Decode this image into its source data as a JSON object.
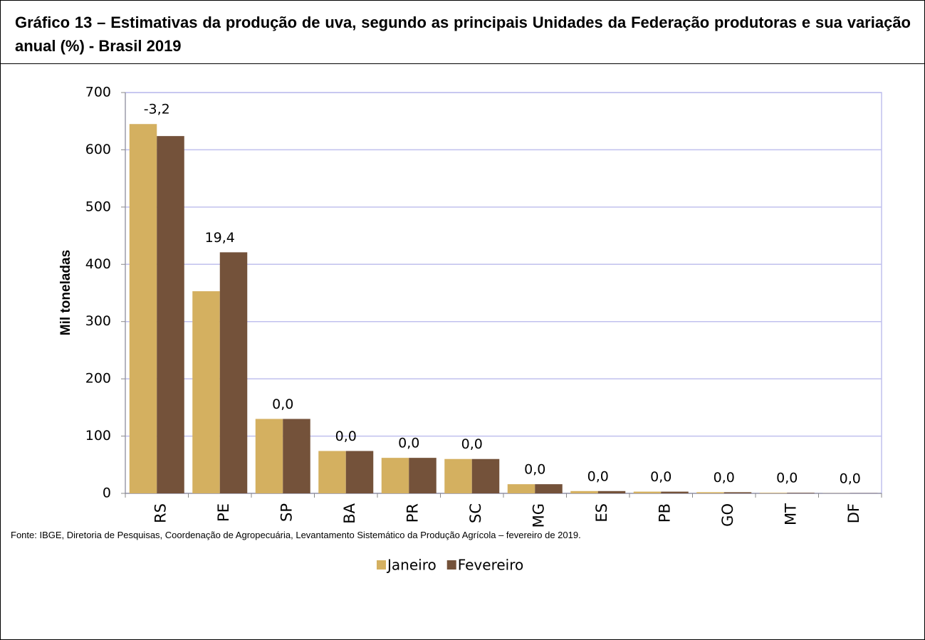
{
  "chart_data": {
    "type": "bar",
    "title": "Gráfico 13 – Estimativas da produção de uva, segundo as principais Unidades da Federação produtoras e sua variação anual (%) - Brasil 2019",
    "ylabel": "Mil toneladas",
    "categories": [
      "RS",
      "PE",
      "SP",
      "BA",
      "PR",
      "SC",
      "MG",
      "ES",
      "PB",
      "GO",
      "MT",
      "DF"
    ],
    "series": [
      {
        "name": "Janeiro",
        "color": "#d4b060",
        "values": [
          645,
          353,
          130,
          74,
          62,
          60,
          16,
          4,
          3,
          2,
          1,
          0.3
        ]
      },
      {
        "name": "Fevereiro",
        "color": "#74523a",
        "values": [
          624,
          421,
          130,
          74,
          62,
          60,
          16,
          4,
          3,
          2,
          1,
          0.3
        ]
      }
    ],
    "variation": {
      "values": [
        -3.2,
        19.4,
        0,
        0,
        0,
        0,
        0,
        0,
        0,
        0,
        0,
        0
      ],
      "value_labels": [
        "-3,2",
        "19,4",
        "0,0",
        "0,0",
        "0,0",
        "0,0",
        "0,0",
        "0,0",
        "0,0",
        "0,0",
        "0,0",
        "0,0"
      ]
    },
    "ylim": [
      0,
      700
    ],
    "yticks": [
      0,
      100,
      200,
      300,
      400,
      500,
      600,
      700
    ],
    "grid": true,
    "legend": "bottom",
    "source": "Fonte: IBGE, Diretoria de Pesquisas, Coordenação de Agropecuária, Levantamento Sistemático da Produção Agrícola – fevereiro de 2019."
  }
}
